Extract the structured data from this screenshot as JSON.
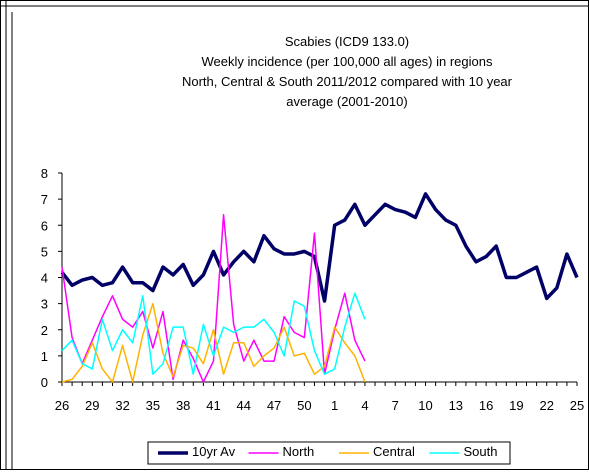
{
  "chart_data": {
    "type": "line",
    "title": [
      "Scabies (ICD9 133.0)",
      "Weekly incidence (per 100,000 all ages) in regions",
      "North, Central & South 2011/2012 compared with 10 year",
      "average (2001-2010)"
    ],
    "categories": [
      "26",
      null,
      null,
      "29",
      null,
      null,
      "32",
      null,
      null,
      "35",
      null,
      null,
      "38",
      null,
      null,
      "41",
      null,
      null,
      "44",
      null,
      null,
      "47",
      null,
      null,
      "50",
      null,
      null,
      "1",
      null,
      null,
      "4",
      null,
      null,
      "7",
      null,
      null,
      "10",
      null,
      null,
      "13",
      null,
      null,
      "16",
      null,
      null,
      "19",
      null,
      null,
      "22",
      null,
      null,
      "25"
    ],
    "series": [
      {
        "name": "10yr Av",
        "color": "#000066",
        "width": 3.5,
        "values": [
          4.2,
          3.7,
          3.9,
          4.0,
          3.7,
          3.8,
          4.4,
          3.8,
          3.8,
          3.5,
          4.4,
          4.1,
          4.5,
          3.7,
          4.1,
          5.0,
          4.1,
          4.6,
          5.0,
          4.6,
          5.6,
          5.1,
          4.9,
          4.9,
          5.0,
          4.8,
          3.1,
          6.0,
          6.2,
          6.8,
          6.0,
          6.4,
          6.8,
          6.6,
          6.5,
          6.3,
          7.2,
          6.6,
          6.2,
          6.0,
          5.2,
          4.6,
          4.8,
          5.2,
          4.0,
          4.0,
          4.2,
          4.4,
          3.2,
          3.6,
          4.9,
          4.0
        ]
      },
      {
        "name": "North",
        "color": "#ff00ff",
        "width": 1.5,
        "values": [
          4.4,
          1.7,
          0.7,
          1.6,
          2.5,
          3.3,
          2.4,
          2.1,
          2.7,
          1.3,
          2.7,
          0.1,
          1.6,
          0.9,
          0,
          0.8,
          6.4,
          2.2,
          0.8,
          1.6,
          0.8,
          0.8,
          2.5,
          1.9,
          1.7,
          5.7,
          0.3,
          2.0,
          3.4,
          1.6,
          0.8,
          null,
          null,
          null,
          null,
          null,
          null,
          null,
          null,
          null,
          null,
          null,
          null,
          null,
          null,
          null,
          null,
          null,
          null,
          null,
          null,
          null
        ]
      },
      {
        "name": "Central",
        "color": "#ffb300",
        "width": 1.5,
        "values": [
          0,
          0.1,
          0.6,
          1.5,
          0.5,
          0,
          1.4,
          0,
          1.8,
          3.0,
          1.1,
          0.2,
          1.4,
          1.3,
          0.7,
          2.0,
          0.3,
          1.5,
          1.5,
          0.6,
          1.0,
          1.3,
          2.1,
          1.0,
          1.1,
          0.3,
          0.6,
          2.1,
          1.5,
          1.0,
          0,
          null,
          null,
          null,
          null,
          null,
          null,
          null,
          null,
          null,
          null,
          null,
          null,
          null,
          null,
          null,
          null,
          null,
          null,
          null,
          null,
          null
        ]
      },
      {
        "name": "South",
        "color": "#00ffff",
        "width": 1.5,
        "values": [
          1.2,
          1.6,
          0.7,
          0.5,
          2.4,
          1.2,
          2.0,
          1.5,
          3.3,
          0.3,
          0.7,
          2.1,
          2.1,
          0.3,
          2.2,
          1.0,
          2.1,
          1.9,
          2.1,
          2.1,
          2.4,
          1.9,
          1.0,
          3.1,
          2.9,
          1.2,
          0.3,
          0.5,
          2.1,
          3.4,
          2.4,
          null,
          null,
          null,
          null,
          null,
          null,
          null,
          null,
          null,
          null,
          null,
          null,
          null,
          null,
          null,
          null,
          null,
          null,
          null,
          null,
          null
        ]
      }
    ],
    "ylim": [
      0,
      8
    ],
    "yticks": [
      0,
      1,
      2,
      3,
      4,
      5,
      6,
      7,
      8
    ],
    "grid": false,
    "legend": "bottom"
  }
}
